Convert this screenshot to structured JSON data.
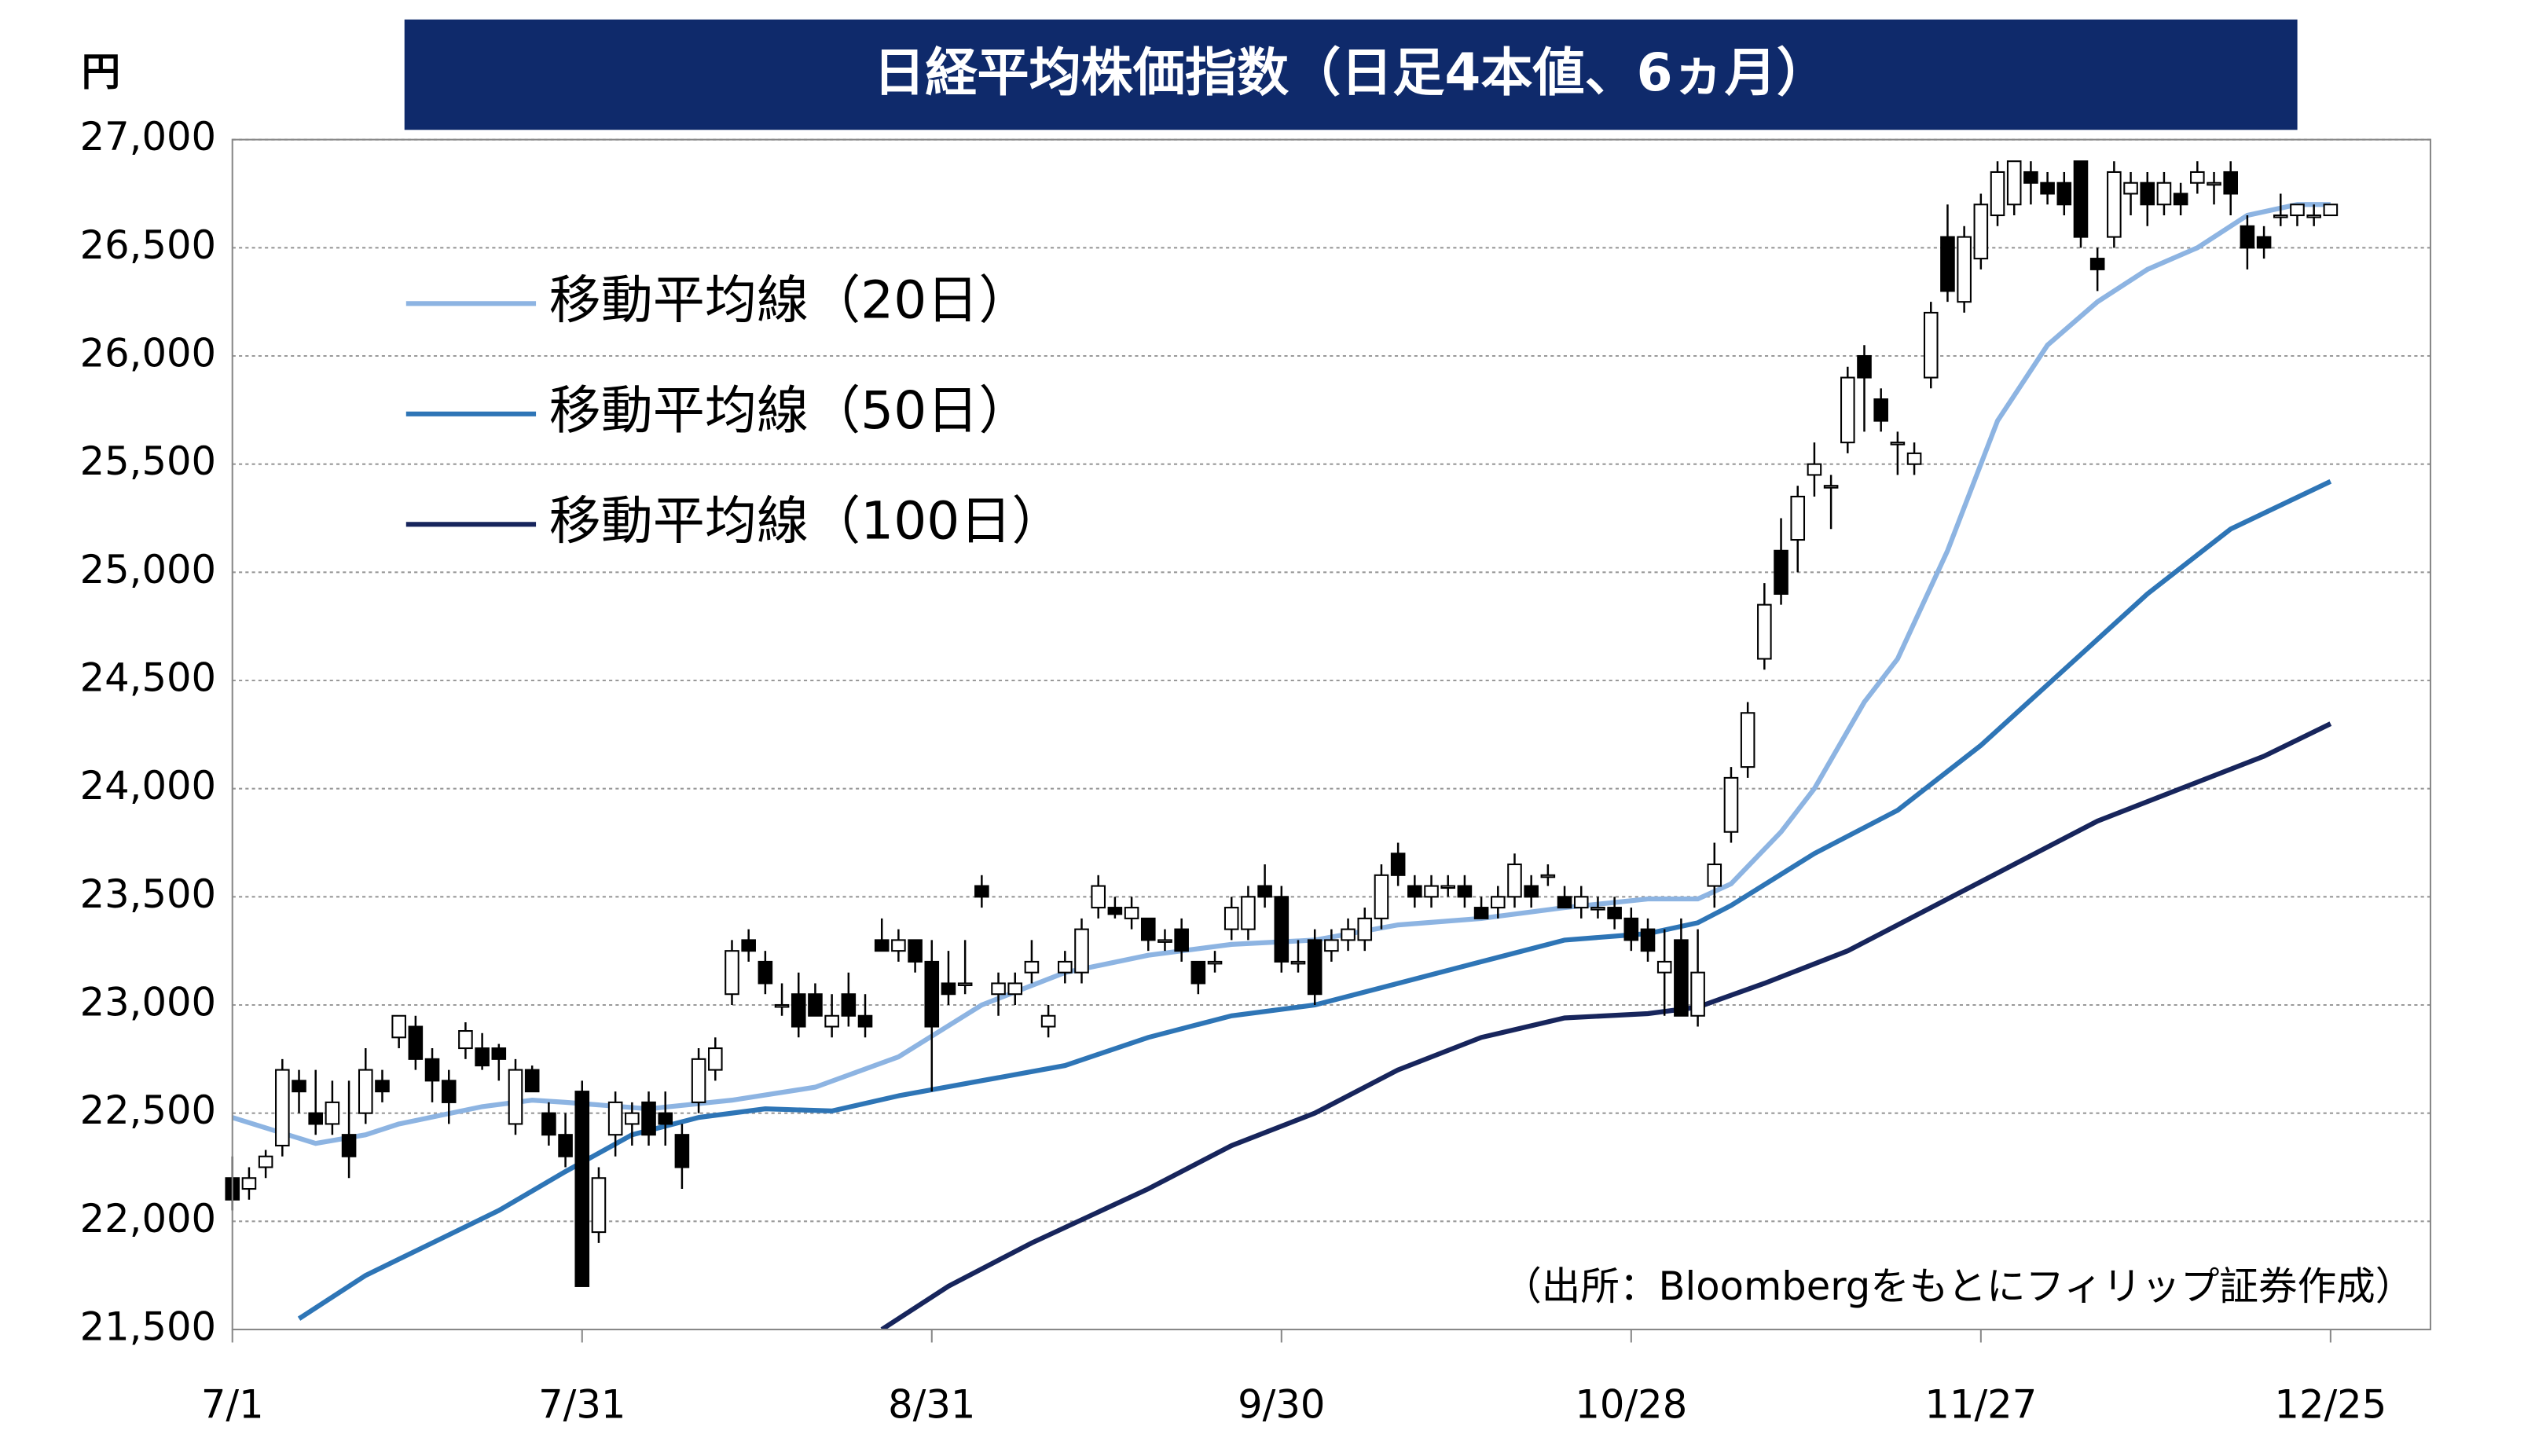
{
  "chart_data": {
    "type": "candlestick",
    "title": "日経平均株価指数（日足4本値、6ヵ月）",
    "y_unit": "円",
    "source": "（出所：Bloombergをもとにフィリップ証券作成）",
    "up_color": "#ffffff",
    "down_color": "#000000",
    "xlim": [
      0,
      132
    ],
    "xticks": [
      {
        "value": 0,
        "label": "7/1"
      },
      {
        "value": 21,
        "label": "7/31"
      },
      {
        "value": 42,
        "label": "8/31"
      },
      {
        "value": 63,
        "label": "9/30"
      },
      {
        "value": 84,
        "label": "10/28"
      },
      {
        "value": 105,
        "label": "11/27"
      },
      {
        "value": 126,
        "label": "12/25"
      }
    ],
    "ylim": [
      21500,
      27000
    ],
    "yticks": [
      {
        "value": 21500,
        "label": "21,500"
      },
      {
        "value": 22000,
        "label": "22,000"
      },
      {
        "value": 22500,
        "label": "22,500"
      },
      {
        "value": 23000,
        "label": "23,000"
      },
      {
        "value": 23500,
        "label": "23,500"
      },
      {
        "value": 24000,
        "label": "24,000"
      },
      {
        "value": 24500,
        "label": "24,500"
      },
      {
        "value": 25000,
        "label": "25,000"
      },
      {
        "value": 25500,
        "label": "25,500"
      },
      {
        "value": 26000,
        "label": "26,000"
      },
      {
        "value": 26500,
        "label": "26,500"
      },
      {
        "value": 27000,
        "label": "27,000"
      }
    ],
    "grid": true,
    "ohlc": [
      [
        22200,
        22300,
        22050,
        22100
      ],
      [
        22150,
        22250,
        22100,
        22200
      ],
      [
        22250,
        22330,
        22200,
        22300
      ],
      [
        22350,
        22750,
        22300,
        22700
      ],
      [
        22650,
        22700,
        22500,
        22600
      ],
      [
        22500,
        22700,
        22400,
        22450
      ],
      [
        22450,
        22650,
        22400,
        22550
      ],
      [
        22400,
        22650,
        22200,
        22300
      ],
      [
        22500,
        22800,
        22450,
        22700
      ],
      [
        22650,
        22700,
        22550,
        22600
      ],
      [
        22850,
        22950,
        22800,
        22950
      ],
      [
        22900,
        22950,
        22700,
        22750
      ],
      [
        22750,
        22800,
        22550,
        22650
      ],
      [
        22650,
        22700,
        22450,
        22550
      ],
      [
        22800,
        22920,
        22750,
        22880
      ],
      [
        22800,
        22870,
        22700,
        22720
      ],
      [
        22800,
        22820,
        22650,
        22750
      ],
      [
        22450,
        22750,
        22400,
        22700
      ],
      [
        22700,
        22720,
        22600,
        22600
      ],
      [
        22500,
        22550,
        22350,
        22400
      ],
      [
        22400,
        22500,
        22250,
        22300
      ],
      [
        22600,
        22650,
        21700,
        21700
      ],
      [
        21950,
        22250,
        21900,
        22200
      ],
      [
        22400,
        22600,
        22300,
        22550
      ],
      [
        22450,
        22550,
        22350,
        22500
      ],
      [
        22550,
        22600,
        22350,
        22400
      ],
      [
        22500,
        22600,
        22350,
        22450
      ],
      [
        22400,
        22450,
        22150,
        22250
      ],
      [
        22550,
        22800,
        22500,
        22750
      ],
      [
        22700,
        22850,
        22650,
        22800
      ],
      [
        23050,
        23300,
        23000,
        23250
      ],
      [
        23300,
        23350,
        23200,
        23250
      ],
      [
        23200,
        23250,
        23050,
        23100
      ],
      [
        23000,
        23100,
        22950,
        23000
      ],
      [
        23050,
        23150,
        22850,
        22900
      ],
      [
        23050,
        23100,
        22950,
        22950
      ],
      [
        22900,
        23050,
        22850,
        22950
      ],
      [
        23050,
        23150,
        22900,
        22950
      ],
      [
        22950,
        23050,
        22850,
        22900
      ],
      [
        23300,
        23400,
        23250,
        23250
      ],
      [
        23250,
        23350,
        23200,
        23300
      ],
      [
        23300,
        23300,
        23150,
        23200
      ],
      [
        23200,
        23300,
        22600,
        22900
      ],
      [
        23100,
        23250,
        23000,
        23050
      ],
      [
        23100,
        23300,
        23050,
        23100
      ],
      [
        23550,
        23600,
        23450,
        23500
      ],
      [
        23050,
        23150,
        22950,
        23100
      ],
      [
        23050,
        23150,
        23000,
        23100
      ],
      [
        23150,
        23300,
        23100,
        23200
      ],
      [
        22900,
        23000,
        22850,
        22950
      ],
      [
        23150,
        23250,
        23100,
        23200
      ],
      [
        23150,
        23400,
        23100,
        23350
      ],
      [
        23450,
        23600,
        23400,
        23550
      ],
      [
        23450,
        23500,
        23400,
        23420
      ],
      [
        23400,
        23500,
        23350,
        23450
      ],
      [
        23400,
        23400,
        23250,
        23300
      ],
      [
        23300,
        23350,
        23250,
        23300
      ],
      [
        23350,
        23400,
        23200,
        23250
      ],
      [
        23200,
        23200,
        23050,
        23100
      ],
      [
        23200,
        23250,
        23150,
        23200
      ],
      [
        23350,
        23500,
        23300,
        23450
      ],
      [
        23350,
        23550,
        23300,
        23500
      ],
      [
        23550,
        23650,
        23450,
        23500
      ],
      [
        23500,
        23550,
        23150,
        23200
      ],
      [
        23200,
        23300,
        23150,
        23200
      ],
      [
        23300,
        23350,
        23000,
        23050
      ],
      [
        23250,
        23350,
        23200,
        23300
      ],
      [
        23300,
        23400,
        23250,
        23350
      ],
      [
        23300,
        23450,
        23250,
        23400
      ],
      [
        23400,
        23650,
        23350,
        23600
      ],
      [
        23700,
        23750,
        23550,
        23600
      ],
      [
        23550,
        23600,
        23450,
        23500
      ],
      [
        23500,
        23600,
        23450,
        23550
      ],
      [
        23550,
        23600,
        23500,
        23550
      ],
      [
        23550,
        23600,
        23450,
        23500
      ],
      [
        23450,
        23500,
        23400,
        23400
      ],
      [
        23450,
        23550,
        23400,
        23500
      ],
      [
        23500,
        23700,
        23450,
        23650
      ],
      [
        23550,
        23600,
        23450,
        23500
      ],
      [
        23600,
        23650,
        23550,
        23600
      ],
      [
        23500,
        23550,
        23450,
        23450
      ],
      [
        23450,
        23550,
        23400,
        23500
      ],
      [
        23450,
        23500,
        23400,
        23450
      ],
      [
        23450,
        23500,
        23350,
        23400
      ],
      [
        23400,
        23450,
        23250,
        23300
      ],
      [
        23350,
        23400,
        23200,
        23250
      ],
      [
        23150,
        23350,
        22950,
        23200
      ],
      [
        23300,
        23400,
        22950,
        22950
      ],
      [
        22950,
        23350,
        22900,
        23150
      ],
      [
        23550,
        23750,
        23450,
        23650
      ],
      [
        23800,
        24100,
        23750,
        24050
      ],
      [
        24100,
        24400,
        24050,
        24350
      ],
      [
        24600,
        24950,
        24550,
        24850
      ],
      [
        25100,
        25250,
        24850,
        24900
      ],
      [
        25150,
        25400,
        25000,
        25350
      ],
      [
        25450,
        25600,
        25350,
        25500
      ],
      [
        25400,
        25450,
        25200,
        25400
      ],
      [
        25600,
        25950,
        25550,
        25900
      ],
      [
        26000,
        26050,
        25650,
        25900
      ],
      [
        25800,
        25850,
        25650,
        25700
      ],
      [
        25600,
        25650,
        25450,
        25600
      ],
      [
        25500,
        25600,
        25450,
        25550
      ],
      [
        25900,
        26250,
        25850,
        26200
      ],
      [
        26550,
        26700,
        26250,
        26300
      ],
      [
        26250,
        26600,
        26200,
        26550
      ],
      [
        26450,
        26750,
        26400,
        26700
      ],
      [
        26650,
        26900,
        26600,
        26850
      ],
      [
        26700,
        26900,
        26650,
        26900
      ],
      [
        26850,
        26900,
        26700,
        26800
      ],
      [
        26800,
        26850,
        26700,
        26750
      ],
      [
        26800,
        26850,
        26650,
        26700
      ],
      [
        26900,
        26900,
        26500,
        26550
      ],
      [
        26450,
        26500,
        26300,
        26400
      ],
      [
        26550,
        26900,
        26500,
        26850
      ],
      [
        26750,
        26850,
        26650,
        26800
      ],
      [
        26800,
        26850,
        26600,
        26700
      ],
      [
        26700,
        26850,
        26650,
        26800
      ],
      [
        26750,
        26800,
        26650,
        26700
      ],
      [
        26800,
        26900,
        26750,
        26850
      ],
      [
        26800,
        26850,
        26700,
        26800
      ],
      [
        26850,
        26900,
        26650,
        26750
      ],
      [
        26600,
        26650,
        26400,
        26500
      ],
      [
        26550,
        26600,
        26450,
        26500
      ],
      [
        26650,
        26750,
        26600,
        26650
      ],
      [
        26650,
        26700,
        26600,
        26700
      ],
      [
        26650,
        26700,
        26600,
        26650
      ],
      [
        26650,
        26700,
        26650,
        26700
      ]
    ],
    "series": [
      {
        "name": "移動平均線（20日）",
        "color": "#8db4e2",
        "x": [
          0,
          5,
          8,
          10,
          15,
          18,
          20,
          25,
          30,
          35,
          40,
          45,
          50,
          55,
          60,
          65,
          70,
          75,
          80,
          85,
          88,
          90,
          93,
          95,
          98,
          100,
          103,
          106,
          109,
          112,
          115,
          118,
          121,
          124,
          126
        ],
        "values": [
          22480,
          22360,
          22400,
          22450,
          22530,
          22560,
          22550,
          22520,
          22560,
          22620,
          22760,
          23000,
          23150,
          23230,
          23280,
          23300,
          23370,
          23400,
          23450,
          23490,
          23490,
          23560,
          23800,
          24000,
          24400,
          24600,
          25100,
          25700,
          26050,
          26250,
          26400,
          26500,
          26650,
          26700,
          26700
        ]
      },
      {
        "name": "移動平均線（50日）",
        "color": "#2e75b6",
        "x": [
          4,
          8,
          12,
          16,
          20,
          24,
          28,
          32,
          36,
          40,
          45,
          50,
          55,
          60,
          65,
          70,
          75,
          80,
          85,
          88,
          90,
          95,
          100,
          105,
          110,
          115,
          120,
          126
        ],
        "values": [
          21550,
          21750,
          21900,
          22050,
          22230,
          22400,
          22480,
          22520,
          22510,
          22580,
          22650,
          22720,
          22850,
          22950,
          23000,
          23100,
          23200,
          23300,
          23330,
          23380,
          23460,
          23700,
          23900,
          24200,
          24550,
          24900,
          25200,
          25420
        ]
      },
      {
        "name": "移動平均線（100日）",
        "color": "#17255c",
        "x": [
          39,
          43,
          48,
          55,
          60,
          65,
          70,
          75,
          80,
          85,
          88,
          92,
          97,
          102,
          107,
          112,
          117,
          122,
          126
        ],
        "values": [
          21500,
          21700,
          21900,
          22150,
          22350,
          22500,
          22700,
          22850,
          22940,
          22960,
          22990,
          23100,
          23250,
          23450,
          23650,
          23850,
          24000,
          24150,
          24300
        ]
      }
    ]
  }
}
